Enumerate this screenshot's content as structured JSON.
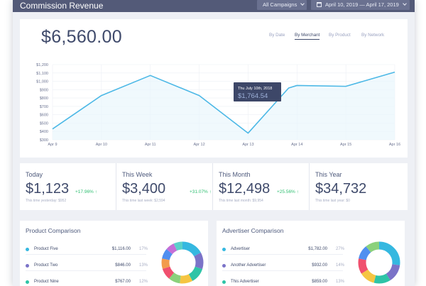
{
  "header": {
    "title": "Commission Revenue",
    "campaign_filter": "All Campaigns",
    "date_range": "April 10, 2019 — April 17, 2019"
  },
  "summary": {
    "total": "$6,560.00",
    "tabs": [
      "By Date",
      "By Merchant",
      "By Product",
      "By Network"
    ],
    "active_tab": "By Merchant"
  },
  "chart_data": {
    "type": "line",
    "categories": [
      "Apr 9",
      "Apr 10",
      "Apr 11",
      "Apr 12",
      "Apr 13",
      "Apr 14",
      "Apr 15",
      "Apr 16"
    ],
    "series": [
      {
        "x": [
          0,
          1,
          2,
          3,
          4,
          4.83,
          5,
          6,
          7
        ],
        "values": [
          430,
          830,
          1070,
          830,
          380,
          920,
          950,
          940,
          1110
        ]
      }
    ],
    "y_ticks": [
      "$300",
      "$400",
      "$500",
      "$600",
      "$700",
      "$800",
      "$900",
      "$1,000",
      "$1,100",
      "$1,200"
    ],
    "ylim": [
      300,
      1200
    ],
    "grid": true,
    "line_color": "#4cb8e6",
    "tooltip": {
      "date": "Thu July 10th, 2018",
      "value": "$1,764.54"
    }
  },
  "stats": [
    {
      "label": "Today",
      "value": "$1,123",
      "change": "+17.96% ↑",
      "sub": "This time yesterday: $952"
    },
    {
      "label": "This Week",
      "value": "$3,400",
      "change": "+31.07% ↑",
      "sub": "This time last week: $2,594"
    },
    {
      "label": "This Month",
      "value": "$12,498",
      "change": "+25.56% ↑",
      "sub": "This time last month: $9,954"
    },
    {
      "label": "This Year",
      "value": "$34,732",
      "change": "",
      "sub": "This time last year: $0"
    }
  ],
  "product_comparison": {
    "title": "Product Comparison",
    "rows": [
      {
        "name": "Product Five",
        "amount": "$1,116.00",
        "pct": "17%",
        "color": "#35b8e0"
      },
      {
        "name": "Product Two",
        "amount": "$846.00",
        "pct": "13%",
        "color": "#7b73c8"
      },
      {
        "name": "Product Nine",
        "amount": "$767.00",
        "pct": "12%",
        "color": "#2ec4a7"
      }
    ],
    "donut": [
      {
        "value": 17,
        "color": "#35b8e0"
      },
      {
        "value": 13,
        "color": "#7b73c8"
      },
      {
        "value": 12,
        "color": "#2ec4a7"
      },
      {
        "value": 10,
        "color": "#f5c542"
      },
      {
        "value": 9,
        "color": "#8bd17c"
      },
      {
        "value": 9,
        "color": "#f0506e"
      },
      {
        "value": 8,
        "color": "#f29b4c"
      },
      {
        "value": 8,
        "color": "#4f8ff0"
      },
      {
        "value": 7,
        "color": "#c46fd6"
      },
      {
        "value": 7,
        "color": "#5ad1c9"
      }
    ]
  },
  "advertiser_comparison": {
    "title": "Advertiser Comparison",
    "rows": [
      {
        "name": "Advertiser",
        "amount": "$1,782.00",
        "pct": "27%",
        "color": "#35b8e0"
      },
      {
        "name": "Another Advertiser",
        "amount": "$932.00",
        "pct": "14%",
        "color": "#7b73c8"
      },
      {
        "name": "This Advertiser",
        "amount": "$859.00",
        "pct": "13%",
        "color": "#2ec4a7"
      }
    ],
    "donut": [
      {
        "value": 27,
        "color": "#35b8e0"
      },
      {
        "value": 14,
        "color": "#7b73c8"
      },
      {
        "value": 13,
        "color": "#2ec4a7"
      },
      {
        "value": 12,
        "color": "#f5c542"
      },
      {
        "value": 12,
        "color": "#f0506e"
      },
      {
        "value": 11,
        "color": "#4f8ff0"
      },
      {
        "value": 11,
        "color": "#8bd17c"
      }
    ]
  }
}
